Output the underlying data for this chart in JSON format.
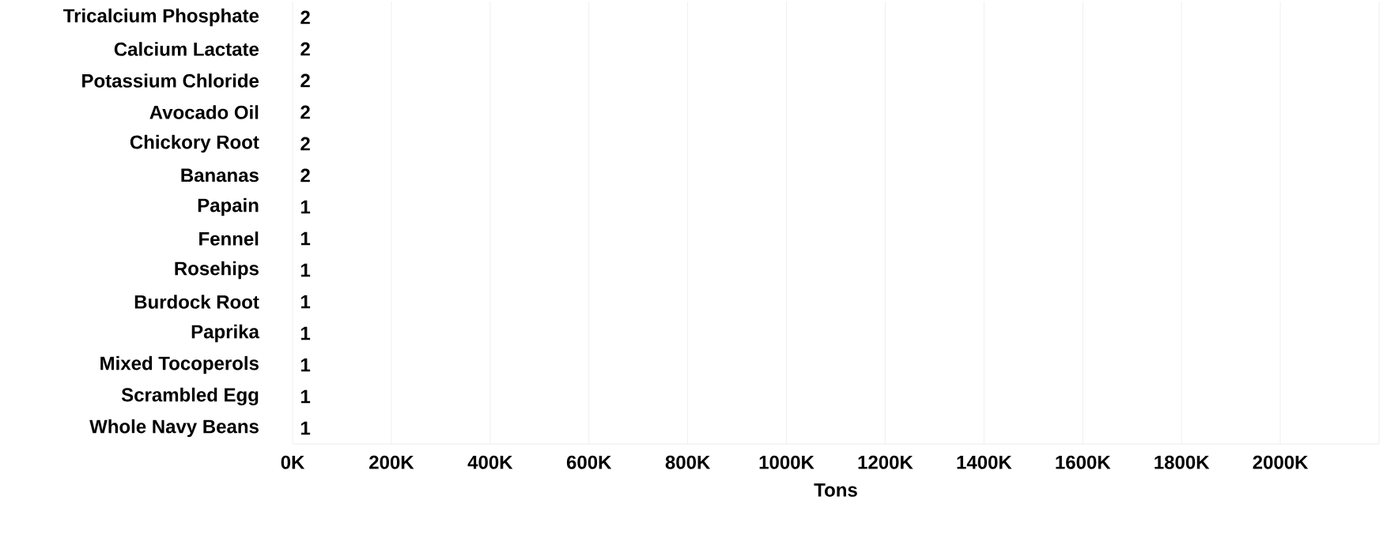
{
  "chart_data": {
    "type": "bar",
    "orientation": "horizontal",
    "categories": [
      "Tricalcium Phosphate",
      "Calcium Lactate",
      "Potassium Chloride",
      "Avocado Oil",
      "Chickory Root",
      "Bananas",
      "Papain",
      "Fennel",
      "Rosehips",
      "Burdock Root",
      "Paprika",
      "Mixed Tocoperols",
      "Scrambled Egg",
      "Whole Navy Beans"
    ],
    "values": [
      2,
      2,
      2,
      2,
      2,
      2,
      1,
      1,
      1,
      1,
      1,
      1,
      1,
      1
    ],
    "data_labels": true,
    "xlabel": "Tons",
    "xlim": [
      0,
      2200000
    ],
    "xticks": [
      {
        "value": 0,
        "label": "0K"
      },
      {
        "value": 200000,
        "label": "200K"
      },
      {
        "value": 400000,
        "label": "400K"
      },
      {
        "value": 600000,
        "label": "600K"
      },
      {
        "value": 800000,
        "label": "800K"
      },
      {
        "value": 1000000,
        "label": "1000K"
      },
      {
        "value": 1200000,
        "label": "1200K"
      },
      {
        "value": 1400000,
        "label": "1400K"
      },
      {
        "value": 1600000,
        "label": "1600K"
      },
      {
        "value": 1800000,
        "label": "1800K"
      },
      {
        "value": 2000000,
        "label": "2000K"
      },
      {
        "value": 2200000,
        "label": null
      }
    ],
    "grid": "x"
  }
}
